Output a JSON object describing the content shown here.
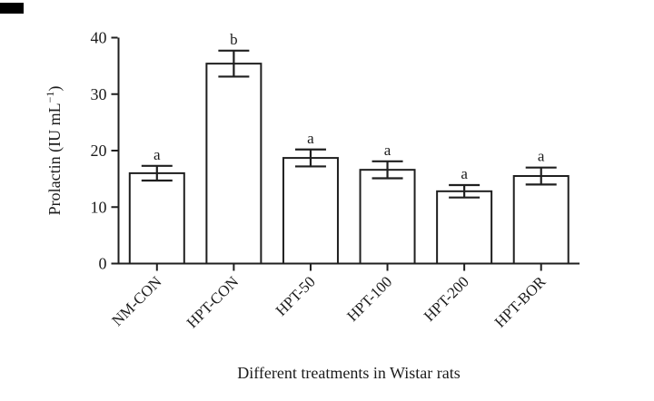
{
  "figure": {
    "line_color": "#1f1f1f",
    "bar_fill": "#ffffff",
    "text_color": "#1c1c1c",
    "corner_mark_color": "#000000"
  },
  "chart_data": {
    "type": "bar",
    "title": "",
    "xlabel": "Different treatments in Wistar rats",
    "ylabel": {
      "main": "Prolactin (IU mL",
      "sup": "−1",
      "end": ")"
    },
    "categories": [
      "NM-CON",
      "HPT-CON",
      "HPT-50",
      "HPT-100",
      "HPT-200",
      "HPT-BOR"
    ],
    "values": [
      16.0,
      35.4,
      18.7,
      16.6,
      12.8,
      15.5
    ],
    "errors": [
      1.3,
      2.3,
      1.5,
      1.5,
      1.1,
      1.5
    ],
    "sig_letters": [
      "a",
      "b",
      "a",
      "a",
      "a",
      "a"
    ],
    "ylim": [
      0,
      40
    ],
    "yticks": [
      0,
      10,
      20,
      30,
      40
    ],
    "grid": false,
    "legend_position": "none",
    "bar_outline_only": true
  }
}
